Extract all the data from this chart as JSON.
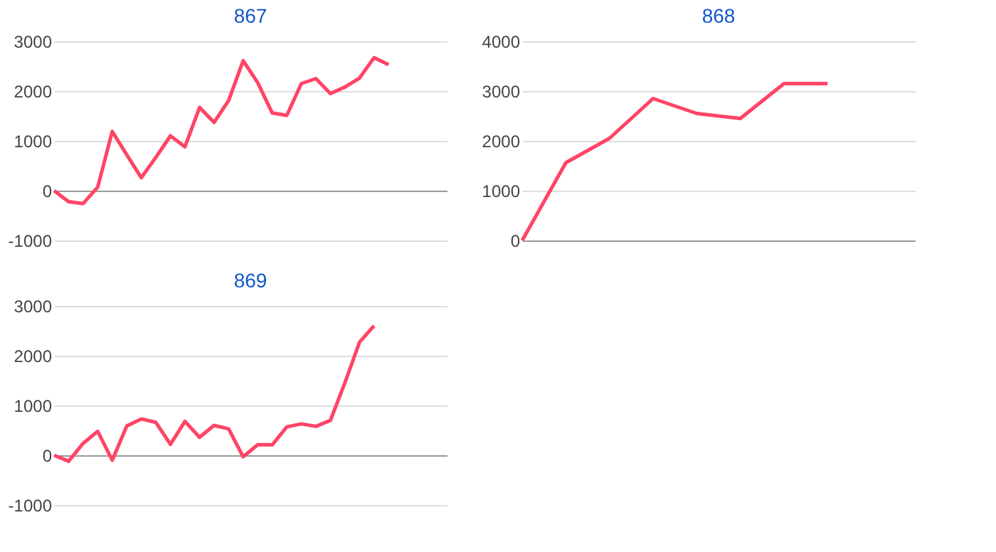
{
  "chart_data": [
    {
      "type": "line",
      "title": "867",
      "categories": [
        null,
        null,
        null,
        null,
        null,
        null,
        null,
        null,
        null,
        null,
        null,
        null,
        null,
        null,
        null,
        null,
        null,
        null,
        null,
        null,
        null,
        null,
        null,
        null,
        null,
        null,
        null,
        null
      ],
      "series": [
        {
          "color": "#ff4466",
          "values": [
            0,
            -220,
            -260,
            70,
            1190,
            720,
            260,
            670,
            1100,
            880,
            1670,
            1370,
            1810,
            2610,
            2170,
            1560,
            1510,
            2150,
            2250,
            1950,
            2080,
            2260,
            2670,
            2530,
            null,
            null,
            null,
            null
          ]
        }
      ],
      "ylim": [
        -1000,
        3000
      ],
      "yticks": [
        -1000,
        0,
        1000,
        2000,
        3000
      ],
      "grid": "y",
      "tick_labels": "y",
      "legend": false
    },
    {
      "type": "line",
      "title": "868",
      "categories": [
        null,
        null,
        null,
        null,
        null,
        null,
        null,
        null,
        null,
        null
      ],
      "series": [
        {
          "color": "#ff4466",
          "values": [
            0,
            1560,
            2050,
            2850,
            2550,
            2450,
            3150,
            3150,
            null,
            null
          ]
        }
      ],
      "ylim": [
        0,
        4000
      ],
      "yticks": [
        0,
        1000,
        2000,
        3000,
        4000
      ],
      "grid": "y",
      "tick_labels": "y",
      "legend": false
    },
    {
      "type": "line",
      "title": "869",
      "categories": [
        null,
        null,
        null,
        null,
        null,
        null,
        null,
        null,
        null,
        null,
        null,
        null,
        null,
        null,
        null,
        null,
        null,
        null,
        null,
        null,
        null,
        null,
        null,
        null,
        null,
        null,
        null,
        null
      ],
      "series": [
        {
          "color": "#ff4466",
          "values": [
            0,
            -120,
            240,
            480,
            -100,
            590,
            730,
            660,
            220,
            680,
            360,
            600,
            530,
            -30,
            210,
            210,
            570,
            630,
            580,
            700,
            1460,
            2270,
            2600,
            null,
            null,
            null,
            null,
            null
          ]
        }
      ],
      "ylim": [
        -1000,
        3000
      ],
      "yticks": [
        -1000,
        0,
        1000,
        2000,
        3000
      ],
      "grid": "y",
      "tick_labels": "y",
      "legend": false
    }
  ]
}
